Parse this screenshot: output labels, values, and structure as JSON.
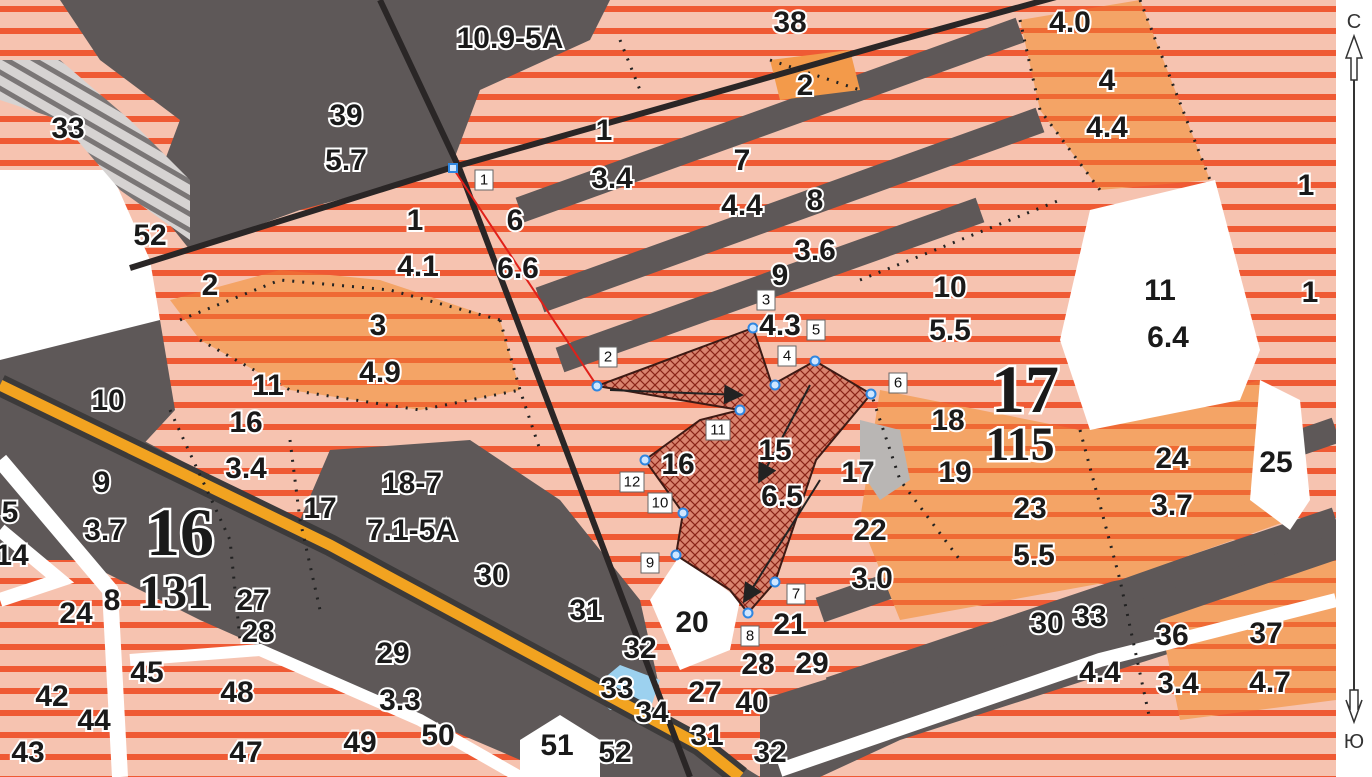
{
  "colors": {
    "forest_stripe_bg": "#f4b8a4",
    "forest_stripe_line": "#f0542c",
    "orange_fill": "#f39a4a",
    "dark_cut": "#5c5757",
    "road_yellow": "#f2a320",
    "parcel_hatch": "#c23b2a",
    "marker_blue": "#2f86e0"
  },
  "compass": {
    "north": "С",
    "south": "Ю"
  },
  "compartments": [
    {
      "number": "16",
      "area": "131"
    },
    {
      "number": "17",
      "area": "115"
    }
  ],
  "labels": [
    {
      "text": "10.9-5А"
    },
    {
      "text": "38"
    },
    {
      "text": "4.0"
    },
    {
      "text": "33"
    },
    {
      "text": "39"
    },
    {
      "text": "5.7"
    },
    {
      "text": "2"
    },
    {
      "text": "4"
    },
    {
      "text": "4.4"
    },
    {
      "text": "1"
    },
    {
      "text": "3.4"
    },
    {
      "text": "7"
    },
    {
      "text": "4.4"
    },
    {
      "text": "52"
    },
    {
      "text": "1"
    },
    {
      "text": "4.1"
    },
    {
      "text": "6"
    },
    {
      "text": "6.6"
    },
    {
      "text": "8"
    },
    {
      "text": "3.6"
    },
    {
      "text": "9"
    },
    {
      "text": "4.3"
    },
    {
      "text": "10"
    },
    {
      "text": "5.5"
    },
    {
      "text": "11"
    },
    {
      "text": "6.4"
    },
    {
      "text": "2"
    },
    {
      "text": "3"
    },
    {
      "text": "4.9"
    },
    {
      "text": "10"
    },
    {
      "text": "11"
    },
    {
      "text": "16"
    },
    {
      "text": "3.4"
    },
    {
      "text": "18"
    },
    {
      "text": "24"
    },
    {
      "text": "3.7"
    },
    {
      "text": "25"
    },
    {
      "text": "9"
    },
    {
      "text": "3.7"
    },
    {
      "text": "17"
    },
    {
      "text": "18-7"
    },
    {
      "text": "7.1-5А"
    },
    {
      "text": "16"
    },
    {
      "text": "15"
    },
    {
      "text": "6.5"
    },
    {
      "text": "17"
    },
    {
      "text": "19"
    },
    {
      "text": "22"
    },
    {
      "text": "3.0"
    },
    {
      "text": "23"
    },
    {
      "text": "5.5"
    },
    {
      "text": "5"
    },
    {
      "text": "14"
    },
    {
      "text": "30"
    },
    {
      "text": "31"
    },
    {
      "text": "20"
    },
    {
      "text": "21"
    },
    {
      "text": "27"
    },
    {
      "text": "28"
    },
    {
      "text": "24"
    },
    {
      "text": "8"
    },
    {
      "text": "30"
    },
    {
      "text": "33"
    },
    {
      "text": "4.4"
    },
    {
      "text": "36"
    },
    {
      "text": "3.4"
    },
    {
      "text": "37"
    },
    {
      "text": "4.7"
    },
    {
      "text": "29"
    },
    {
      "text": "3.3"
    },
    {
      "text": "32"
    },
    {
      "text": "33"
    },
    {
      "text": "34"
    },
    {
      "text": "27"
    },
    {
      "text": "40"
    },
    {
      "text": "28"
    },
    {
      "text": "29"
    },
    {
      "text": "45"
    },
    {
      "text": "48"
    },
    {
      "text": "42"
    },
    {
      "text": "44"
    },
    {
      "text": "43"
    },
    {
      "text": "47"
    },
    {
      "text": "49"
    },
    {
      "text": "50"
    },
    {
      "text": "51"
    },
    {
      "text": "52"
    },
    {
      "text": "31"
    },
    {
      "text": "32"
    },
    {
      "text": "1"
    },
    {
      "text": "1"
    }
  ],
  "points": [
    {
      "id": "1"
    },
    {
      "id": "2"
    },
    {
      "id": "3"
    },
    {
      "id": "4"
    },
    {
      "id": "5"
    },
    {
      "id": "6"
    },
    {
      "id": "7"
    },
    {
      "id": "8"
    },
    {
      "id": "9"
    },
    {
      "id": "10"
    },
    {
      "id": "11"
    },
    {
      "id": "12"
    }
  ]
}
